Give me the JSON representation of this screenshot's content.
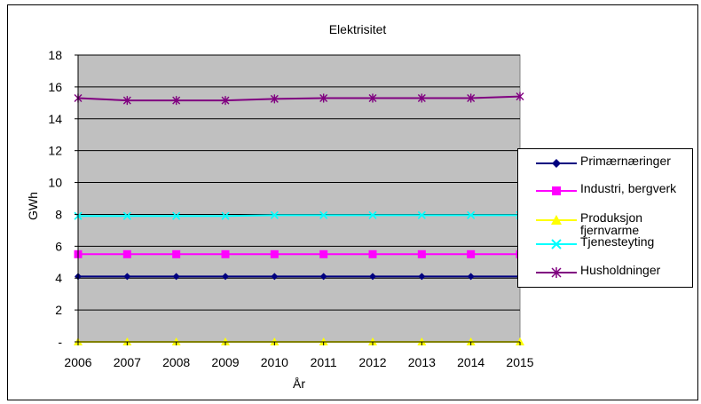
{
  "chart_data": {
    "type": "line",
    "title": "Elektrisitet",
    "xlabel": "År",
    "ylabel": "GWh",
    "x": [
      "2006",
      "2007",
      "2008",
      "2009",
      "2010",
      "2011",
      "2012",
      "2013",
      "2014",
      "2015"
    ],
    "yticks": [
      "-",
      "2",
      "4",
      "6",
      "8",
      "10",
      "12",
      "14",
      "16",
      "18"
    ],
    "ylim": [
      0,
      18
    ],
    "grid": true,
    "legend_position": "right",
    "plot_background": "#c0c0c0",
    "series": [
      {
        "name": "Primærnæringer",
        "color": "#000080",
        "marker": "diamond",
        "values": [
          4.1,
          4.1,
          4.1,
          4.1,
          4.1,
          4.1,
          4.1,
          4.1,
          4.1,
          4.1
        ]
      },
      {
        "name": "Industri, bergverk",
        "color": "#ff00ff",
        "marker": "square",
        "values": [
          5.5,
          5.5,
          5.5,
          5.5,
          5.5,
          5.5,
          5.5,
          5.5,
          5.5,
          5.5
        ]
      },
      {
        "name": "Produksjon fjernvarme",
        "color": "#ffff00",
        "marker": "triangle",
        "values": [
          0,
          0,
          0,
          0,
          0,
          0,
          0,
          0,
          0,
          0
        ]
      },
      {
        "name": "Tjenesteyting",
        "color": "#00ffff",
        "marker": "x",
        "values": [
          7.9,
          7.9,
          7.9,
          7.9,
          7.95,
          7.95,
          7.95,
          7.95,
          7.95,
          7.95
        ]
      },
      {
        "name": "Husholdninger",
        "color": "#800080",
        "marker": "asterisk",
        "values": [
          15.3,
          15.15,
          15.15,
          15.15,
          15.25,
          15.3,
          15.3,
          15.3,
          15.3,
          15.4
        ]
      }
    ]
  }
}
